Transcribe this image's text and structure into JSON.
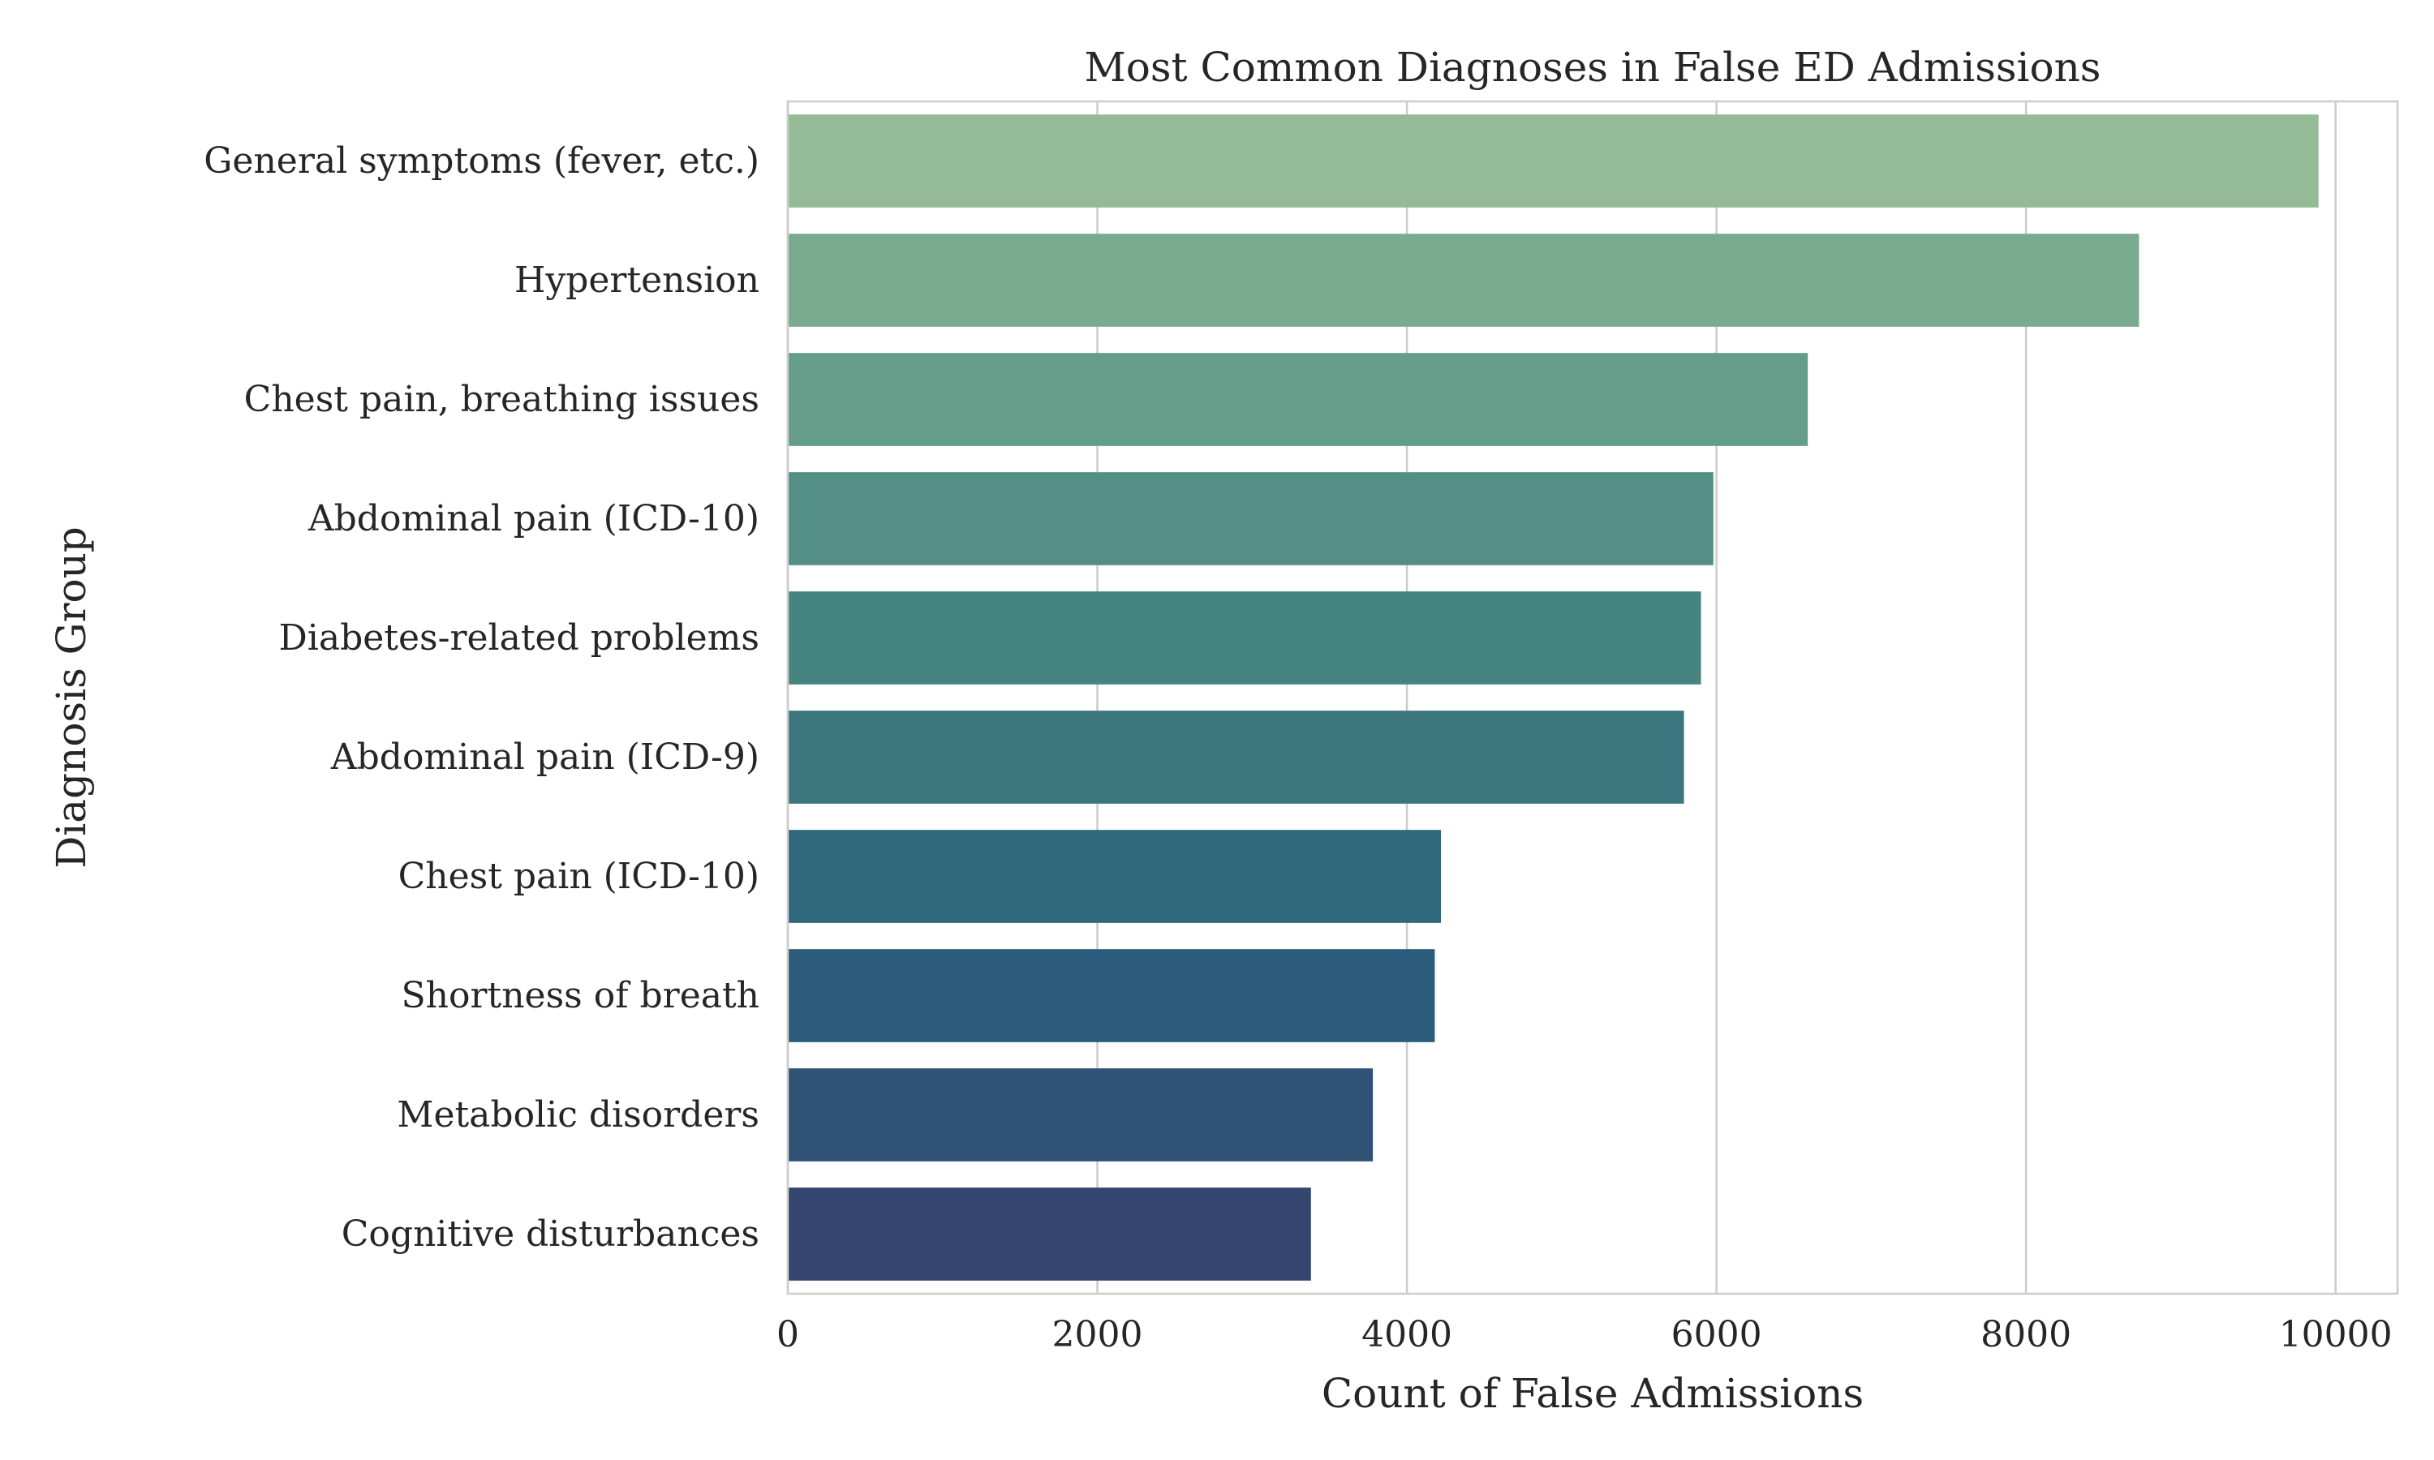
{
  "chart_data": {
    "type": "bar",
    "orientation": "horizontal",
    "title": "Most Common Diagnoses in False ED Admissions",
    "xlabel": "Count of False Admissions",
    "ylabel": "Diagnosis Group",
    "categories": [
      "General symptoms (fever, etc.)",
      "Hypertension",
      "Chest pain, breathing issues",
      "Abdominal pain (ICD-10)",
      "Diabetes-related problems",
      "Abdominal pain (ICD-9)",
      "Chest pain (ICD-10)",
      "Shortness of breath",
      "Metabolic disorders",
      "Cognitive disturbances"
    ],
    "values": [
      9890,
      8730,
      6590,
      5980,
      5900,
      5790,
      4220,
      4180,
      3780,
      3380
    ],
    "colors": [
      "#94bb96",
      "#7aab91",
      "#649e8b",
      "#548f86",
      "#468481",
      "#3b767f",
      "#2f687b",
      "#2b5c7b",
      "#2f5276",
      "#34466f"
    ],
    "xlim": [
      0,
      10400
    ],
    "xticks": [
      0,
      2000,
      4000,
      6000,
      8000,
      10000
    ],
    "xtick_labels": [
      "0",
      "2000",
      "4000",
      "6000",
      "8000",
      "10000"
    ],
    "grid": true,
    "legend": "none"
  }
}
